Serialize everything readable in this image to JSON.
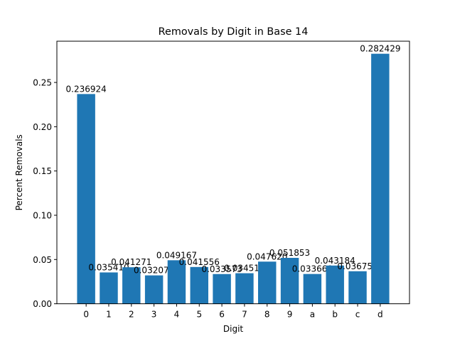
{
  "chart_data": {
    "type": "bar",
    "title": "Removals by Digit in Base 14",
    "xlabel": "Digit",
    "ylabel": "Percent Removals",
    "categories": [
      "0",
      "1",
      "2",
      "3",
      "4",
      "5",
      "6",
      "7",
      "8",
      "9",
      "a",
      "b",
      "c",
      "d"
    ],
    "values": [
      0.236924,
      0.03541,
      0.041271,
      0.032072,
      0.049167,
      0.041556,
      0.033573,
      0.034515,
      0.04762,
      0.051853,
      0.03366,
      0.043184,
      0.036753,
      0.282429
    ],
    "value_labels": [
      "0.236924",
      "0.035410",
      "0.041271",
      "0.032072",
      "0.049167",
      "0.041556",
      "0.033573",
      "0.034515",
      "0.047620",
      "0.051853",
      "0.033660",
      "0.043184",
      "0.036753",
      "0.282429"
    ],
    "ylim": [
      0,
      0.2966
    ],
    "yticks": [
      0.0,
      0.05,
      0.1,
      0.15,
      0.2,
      0.25
    ],
    "ytick_labels": [
      "0.00",
      "0.05",
      "0.10",
      "0.15",
      "0.20",
      "0.25"
    ],
    "grid": false,
    "bar_color": "#1f77b4"
  }
}
